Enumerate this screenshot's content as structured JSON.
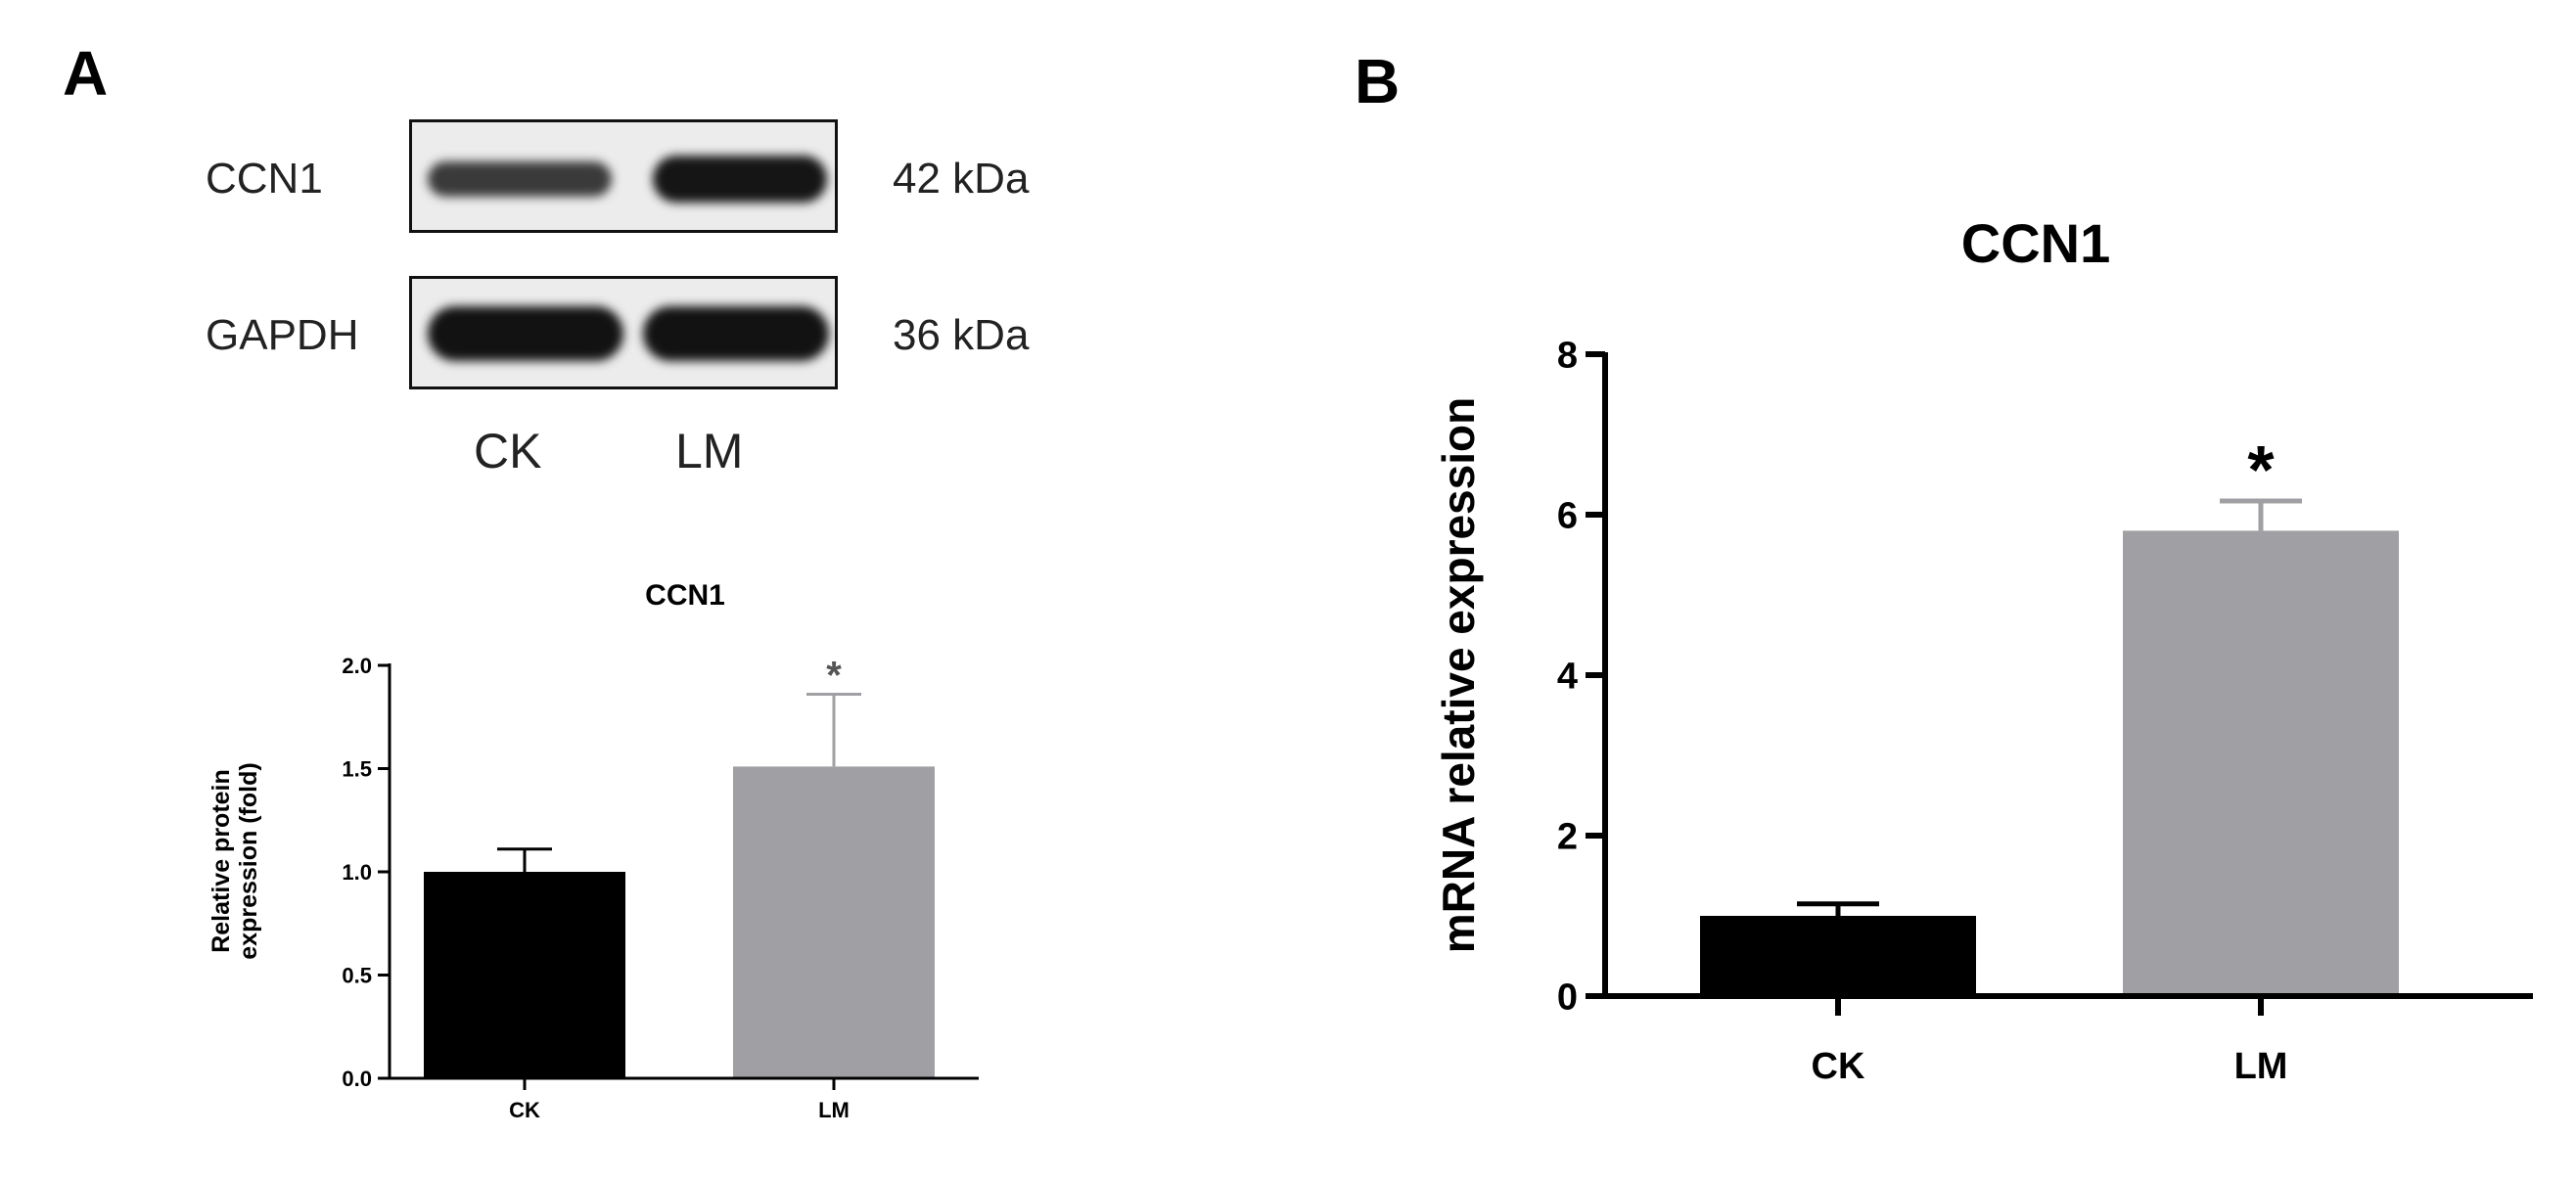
{
  "panel_a": {
    "letter": "A",
    "blot": {
      "rows": [
        {
          "protein": "CCN1",
          "mw": "42 kDa"
        },
        {
          "protein": "GAPDH",
          "mw": "36 kDa"
        }
      ],
      "lanes": [
        "CK",
        "LM"
      ],
      "band_color": "#1a1a1a",
      "background_color": "#ececec"
    }
  },
  "panel_b": {
    "letter": "B"
  },
  "chart_data": [
    {
      "type": "bar",
      "title": "CCN1",
      "xlabel": "",
      "ylabel": "Relative protein expression (fold)",
      "ylabel_lines": [
        "Relative protein",
        "expression (fold)"
      ],
      "categories": [
        "CK",
        "LM"
      ],
      "values": [
        1.0,
        1.51
      ],
      "errors": [
        0.11,
        0.35
      ],
      "significance": [
        "",
        "*"
      ],
      "ylim": [
        0,
        2.0
      ],
      "yticks": [
        0.0,
        0.5,
        1.0,
        1.5,
        2.0
      ],
      "ytick_labels": [
        "0.0",
        "0.5",
        "1.0",
        "1.5",
        "2.0"
      ],
      "colors": [
        "#000000",
        "#a0a0a4"
      ],
      "grid": false,
      "legend": "none"
    },
    {
      "type": "bar",
      "title": "CCN1",
      "xlabel": "",
      "ylabel": "mRNA relative expression",
      "categories": [
        "CK",
        "LM"
      ],
      "values": [
        1.0,
        5.8
      ],
      "errors": [
        0.15,
        0.37
      ],
      "significance": [
        "",
        "*"
      ],
      "ylim": [
        0,
        8
      ],
      "yticks": [
        0,
        2,
        4,
        6,
        8
      ],
      "ytick_labels": [
        "0",
        "2",
        "4",
        "6",
        "8"
      ],
      "colors": [
        "#000000",
        "#a0a0a4"
      ],
      "grid": false,
      "legend": "none"
    }
  ]
}
